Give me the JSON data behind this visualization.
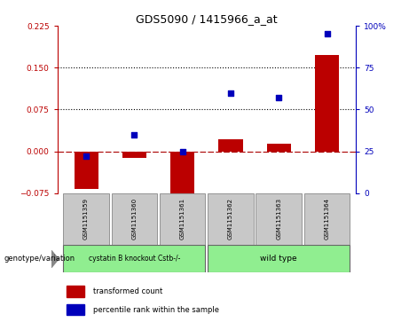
{
  "title": "GDS5090 / 1415966_a_at",
  "samples": [
    "GSM1151359",
    "GSM1151360",
    "GSM1151361",
    "GSM1151362",
    "GSM1151363",
    "GSM1151364"
  ],
  "red_values": [
    -0.068,
    -0.012,
    -0.083,
    0.022,
    0.013,
    0.172
  ],
  "blue_percentiles": [
    22,
    35,
    25,
    60,
    57,
    95
  ],
  "ylim": [
    -0.075,
    0.225
  ],
  "yticks_left": [
    -0.075,
    0,
    0.075,
    0.15,
    0.225
  ],
  "yticks_right": [
    0,
    25,
    50,
    75,
    100
  ],
  "yticks_right_labels": [
    "0",
    "25",
    "50",
    "75",
    "100%"
  ],
  "hlines": [
    0.075,
    0.15
  ],
  "bar_width": 0.5,
  "red_color": "#bb0000",
  "blue_color": "#0000bb",
  "gray_color": "#c8c8c8",
  "green_color": "#90EE90",
  "legend_label_red": "transformed count",
  "legend_label_blue": "percentile rank within the sample",
  "genotype_label": "genotype/variation",
  "group1_label": "cystatin B knockout Cstb-/-",
  "group2_label": "wild type",
  "group1_indices": [
    0,
    1,
    2
  ],
  "group2_indices": [
    3,
    4,
    5
  ]
}
